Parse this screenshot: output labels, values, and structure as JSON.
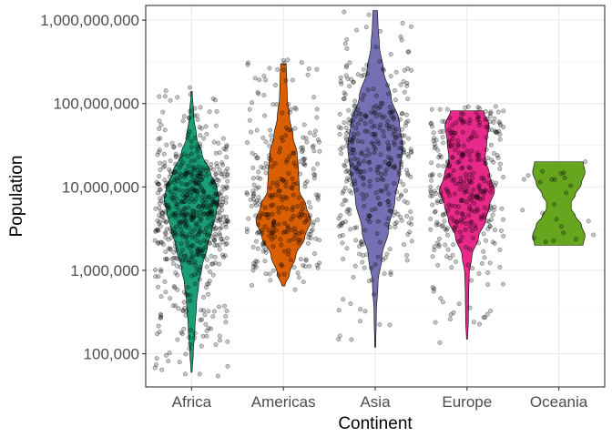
{
  "chart_data": {
    "type": "violin",
    "xlabel": "Continent",
    "ylabel": "Population",
    "y_scale": "log10",
    "ylim": [
      40000,
      1500000000
    ],
    "y_ticks": [
      {
        "value": 100000,
        "label": "100,000"
      },
      {
        "value": 1000000,
        "label": "1,000,000"
      },
      {
        "value": 10000000,
        "label": "10,000,000"
      },
      {
        "value": 100000000,
        "label": "100,000,000"
      },
      {
        "value": 1000000000,
        "label": "1,000,000,000"
      }
    ],
    "grid": true,
    "legend": "none",
    "categories": [
      "Africa",
      "Americas",
      "Asia",
      "Europe",
      "Oceania"
    ],
    "series": [
      {
        "category": "Africa",
        "color": "#1b9e77",
        "min": 60000,
        "max": 140000000,
        "point_count": 624,
        "density_profile": [
          [
            60000,
            0.02
          ],
          [
            100000,
            0.06
          ],
          [
            200000,
            0.12
          ],
          [
            400000,
            0.18
          ],
          [
            700000,
            0.26
          ],
          [
            1000000,
            0.36
          ],
          [
            2000000,
            0.58
          ],
          [
            3000000,
            0.74
          ],
          [
            5000000,
            0.9
          ],
          [
            7000000,
            1.0
          ],
          [
            10000000,
            0.92
          ],
          [
            15000000,
            0.68
          ],
          [
            25000000,
            0.38
          ],
          [
            40000000,
            0.18
          ],
          [
            70000000,
            0.08
          ],
          [
            140000000,
            0.02
          ]
        ]
      },
      {
        "category": "Americas",
        "color": "#d95f02",
        "min": 650000,
        "max": 300000000,
        "point_count": 300,
        "density_profile": [
          [
            650000,
            0.05
          ],
          [
            900000,
            0.22
          ],
          [
            1500000,
            0.45
          ],
          [
            2500000,
            0.78
          ],
          [
            4000000,
            1.0
          ],
          [
            6000000,
            0.82
          ],
          [
            9000000,
            0.58
          ],
          [
            15000000,
            0.55
          ],
          [
            25000000,
            0.5
          ],
          [
            40000000,
            0.35
          ],
          [
            70000000,
            0.22
          ],
          [
            120000000,
            0.14
          ],
          [
            200000000,
            0.12
          ],
          [
            300000000,
            0.1
          ]
        ]
      },
      {
        "category": "Asia",
        "color": "#7570b3",
        "min": 120000,
        "max": 1300000000,
        "point_count": 396,
        "density_profile": [
          [
            120000,
            0.02
          ],
          [
            300000,
            0.04
          ],
          [
            700000,
            0.1
          ],
          [
            1500000,
            0.25
          ],
          [
            3000000,
            0.48
          ],
          [
            7000000,
            0.72
          ],
          [
            15000000,
            0.9
          ],
          [
            30000000,
            1.0
          ],
          [
            60000000,
            0.88
          ],
          [
            120000000,
            0.58
          ],
          [
            250000000,
            0.3
          ],
          [
            500000000,
            0.15
          ],
          [
            900000000,
            0.1
          ],
          [
            1300000000,
            0.08
          ]
        ]
      },
      {
        "category": "Europe",
        "color": "#e7298a",
        "min": 150000,
        "max": 82000000,
        "point_count": 360,
        "density_profile": [
          [
            150000,
            0.02
          ],
          [
            250000,
            0.05
          ],
          [
            500000,
            0.06
          ],
          [
            900000,
            0.08
          ],
          [
            1500000,
            0.18
          ],
          [
            2500000,
            0.42
          ],
          [
            4000000,
            0.68
          ],
          [
            6000000,
            0.82
          ],
          [
            9000000,
            1.0
          ],
          [
            14000000,
            0.82
          ],
          [
            22000000,
            0.66
          ],
          [
            35000000,
            0.72
          ],
          [
            55000000,
            0.8
          ],
          [
            82000000,
            0.6
          ]
        ]
      },
      {
        "category": "Oceania",
        "color": "#66a61e",
        "min": 2000000,
        "max": 20000000,
        "point_count": 24,
        "density_profile": [
          [
            2000000,
            0.88
          ],
          [
            2600000,
            0.95
          ],
          [
            3500000,
            0.82
          ],
          [
            4500000,
            0.6
          ],
          [
            5500000,
            0.45
          ],
          [
            6500000,
            0.45
          ],
          [
            8000000,
            0.6
          ],
          [
            11000000,
            0.82
          ],
          [
            15000000,
            0.95
          ],
          [
            20000000,
            0.88
          ]
        ]
      }
    ]
  }
}
